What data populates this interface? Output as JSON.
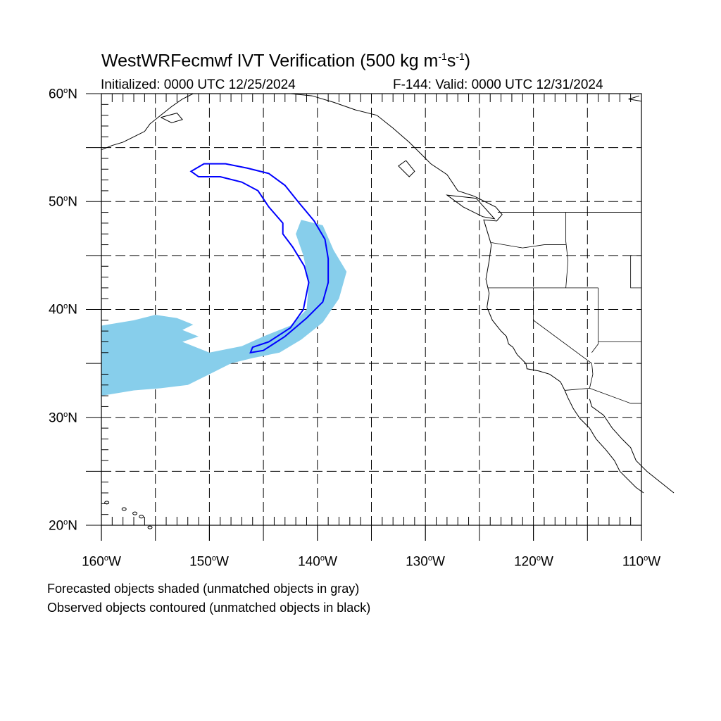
{
  "title": {
    "prefix": "WestWRFecmwf IVT Verification (500 kg m",
    "exp1": "-1",
    "mid": "s",
    "exp2": "-1",
    "suffix": ")"
  },
  "initialized": "Initialized: 0000 UTC 12/25/2024",
  "valid": "F-144: Valid: 0000 UTC 12/31/2024",
  "degree_symbol": "o",
  "lat_labels": [
    {
      "num": "60",
      "hemi": "N"
    },
    {
      "num": "50",
      "hemi": "N"
    },
    {
      "num": "40",
      "hemi": "N"
    },
    {
      "num": "30",
      "hemi": "N"
    },
    {
      "num": "20",
      "hemi": "N"
    }
  ],
  "lon_labels": [
    {
      "num": "160",
      "hemi": "W"
    },
    {
      "num": "150",
      "hemi": "W"
    },
    {
      "num": "140",
      "hemi": "W"
    },
    {
      "num": "130",
      "hemi": "W"
    },
    {
      "num": "120",
      "hemi": "W"
    },
    {
      "num": "110",
      "hemi": "W"
    }
  ],
  "footnotes": {
    "line1": "Forecasted objects shaded (unmatched objects in gray)",
    "line2": "Observed objects contoured (unmatched objects in black)"
  },
  "map": {
    "lon_range": [
      -160,
      -110
    ],
    "lat_range": [
      20,
      60
    ],
    "gridline_lons": [
      -155,
      -150,
      -145,
      -140,
      -135,
      -130,
      -125,
      -120,
      -115
    ],
    "gridline_lats": [
      25,
      30,
      35,
      40,
      45,
      50,
      55
    ],
    "colors": {
      "forecast_fill": "#87ceeb",
      "observed_contour": "#0000ff",
      "coastline": "#000000",
      "grid": "#000000"
    },
    "forecast_object": [
      [
        -160,
        38.5
      ],
      [
        -157,
        39.0
      ],
      [
        -155,
        39.5
      ],
      [
        -153,
        39.2
      ],
      [
        -151.5,
        38.6
      ],
      [
        -152.5,
        38.1
      ],
      [
        -151,
        37.5
      ],
      [
        -152.5,
        37.0
      ],
      [
        -150,
        36.0
      ],
      [
        -147,
        36.6
      ],
      [
        -145,
        37.5
      ],
      [
        -142.5,
        38.5
      ],
      [
        -141,
        40.0
      ],
      [
        -140.8,
        42.5
      ],
      [
        -141.3,
        45.0
      ],
      [
        -142.0,
        47.0
      ],
      [
        -141.5,
        48.3
      ],
      [
        -139.5,
        47.8
      ],
      [
        -138.5,
        45.5
      ],
      [
        -137.3,
        43.5
      ],
      [
        -138.0,
        41.0
      ],
      [
        -139.5,
        38.8
      ],
      [
        -141.5,
        37.2
      ],
      [
        -143.5,
        36.0
      ],
      [
        -146,
        35.5
      ],
      [
        -148,
        35.0
      ],
      [
        -150,
        34.0
      ],
      [
        -152,
        33.0
      ],
      [
        -154.5,
        32.7
      ],
      [
        -157,
        32.5
      ],
      [
        -160,
        32.0
      ]
    ],
    "observed_object": [
      [
        -151.7,
        52.8
      ],
      [
        -150.5,
        53.5
      ],
      [
        -148.5,
        53.5
      ],
      [
        -146.5,
        53.1
      ],
      [
        -144.5,
        52.6
      ],
      [
        -143,
        51.5
      ],
      [
        -141.8,
        50.0
      ],
      [
        -140.3,
        48.2
      ],
      [
        -139.3,
        46.5
      ],
      [
        -139.0,
        44.7
      ],
      [
        -139.0,
        42.5
      ],
      [
        -139.5,
        40.7
      ],
      [
        -141.0,
        39.2
      ],
      [
        -143.0,
        37.5
      ],
      [
        -145.0,
        36.2
      ],
      [
        -146.2,
        36.0
      ],
      [
        -146.0,
        36.5
      ],
      [
        -144.5,
        37.0
      ],
      [
        -142.5,
        38.3
      ],
      [
        -141.3,
        40.0
      ],
      [
        -140.8,
        42.5
      ],
      [
        -141.2,
        44.0
      ],
      [
        -142.3,
        45.8
      ],
      [
        -143.2,
        47.0
      ],
      [
        -143.2,
        48.0
      ],
      [
        -144.5,
        49.5
      ],
      [
        -145.5,
        51.0
      ],
      [
        -147,
        51.8
      ],
      [
        -149,
        52.3
      ],
      [
        -151.0,
        52.3
      ],
      [
        -151.7,
        52.8
      ]
    ]
  }
}
